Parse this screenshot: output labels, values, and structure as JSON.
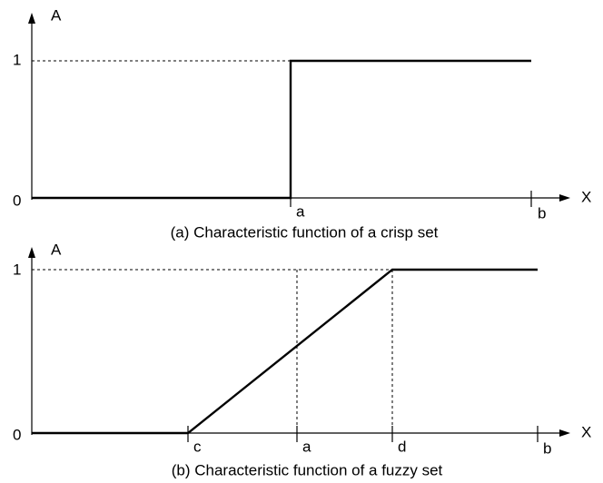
{
  "panels": [
    {
      "y_label": "A",
      "x_label": "X",
      "y_ticks": [
        "1",
        "0"
      ],
      "x_points": [
        "a",
        "b"
      ],
      "caption": "(a) Characteristic function of a crisp set"
    },
    {
      "y_label": "A",
      "x_label": "X",
      "y_ticks": [
        "1",
        "0"
      ],
      "x_points": [
        "c",
        "a",
        "d",
        "b"
      ],
      "caption": "(b) Characteristic function of a fuzzy set"
    }
  ]
}
